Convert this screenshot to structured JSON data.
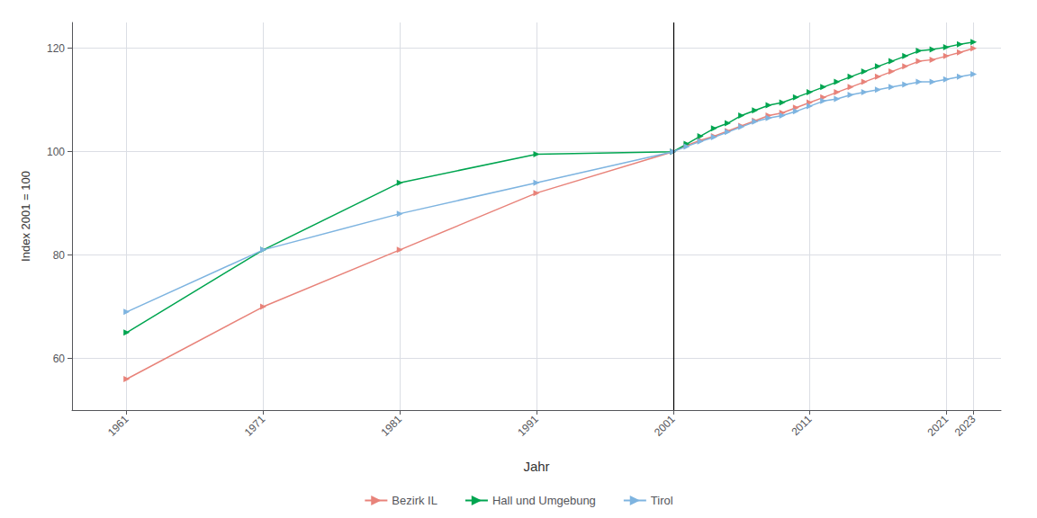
{
  "chart_data": {
    "type": "line",
    "xlabel": "Jahr",
    "ylabel": "Index 2001 = 100",
    "x": [
      1961,
      1971,
      1981,
      1991,
      2001,
      2002,
      2003,
      2004,
      2005,
      2006,
      2007,
      2008,
      2009,
      2010,
      2011,
      2012,
      2013,
      2014,
      2015,
      2016,
      2017,
      2018,
      2019,
      2020,
      2021,
      2022,
      2023
    ],
    "series": [
      {
        "name": "Bezirk IL",
        "color": "#E8837A",
        "values": [
          56,
          70,
          81,
          92,
          100,
          101.2,
          102.2,
          103.0,
          104.0,
          105.0,
          106.0,
          107.0,
          107.5,
          108.5,
          109.5,
          110.5,
          111.5,
          112.5,
          113.5,
          114.5,
          115.5,
          116.5,
          117.5,
          117.8,
          118.5,
          119.2,
          120.0
        ]
      },
      {
        "name": "Hall und Umgebung",
        "color": "#00A550",
        "values": [
          65,
          81,
          94,
          99.5,
          100,
          101.5,
          103.0,
          104.5,
          105.5,
          107.0,
          108.0,
          109.0,
          109.5,
          110.5,
          111.5,
          112.5,
          113.5,
          114.5,
          115.5,
          116.5,
          117.5,
          118.5,
          119.5,
          119.8,
          120.2,
          120.8,
          121.2
        ]
      },
      {
        "name": "Tirol",
        "color": "#7EB4E0",
        "values": [
          69,
          81,
          88,
          94,
          100,
          101.0,
          102.0,
          102.8,
          103.8,
          104.8,
          105.8,
          106.5,
          107.0,
          107.8,
          108.8,
          109.8,
          110.2,
          111.0,
          111.5,
          112.0,
          112.5,
          113.0,
          113.5,
          113.5,
          114.0,
          114.5,
          115.0
        ]
      }
    ],
    "xlim": [
      1957,
      2025
    ],
    "xticks": [
      1961,
      1971,
      1981,
      1991,
      2001,
      2011,
      2021,
      2023
    ],
    "ylim": [
      50,
      125
    ],
    "yticks": [
      60,
      80,
      100,
      120
    ],
    "vline_x": 2001,
    "marker": "triangle",
    "line_style": "solid",
    "grid": true,
    "legend": "bottom"
  }
}
